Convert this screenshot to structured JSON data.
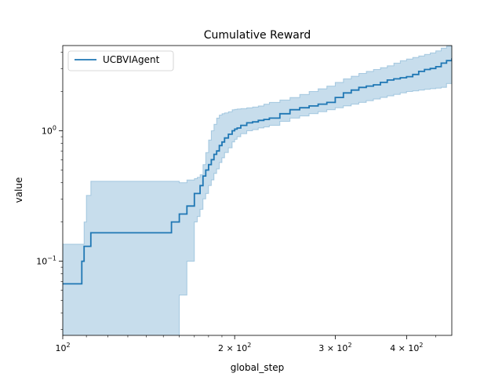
{
  "chart_data": {
    "type": "line",
    "title": "Cumulative Reward",
    "xlabel": "global_step",
    "ylabel": "value",
    "xscale": "log",
    "yscale": "log",
    "xlim": [
      100,
      480
    ],
    "ylim": [
      0.027,
      4.5
    ],
    "grid": false,
    "legend": {
      "placement": "top-left"
    },
    "x_ticks": [
      {
        "value": 100,
        "base": "10",
        "exp": "2"
      },
      {
        "value": 200,
        "base": "2 × 10",
        "exp": "2"
      },
      {
        "value": 300,
        "base": "3 × 10",
        "exp": "2"
      },
      {
        "value": 400,
        "base": "4 × 10",
        "exp": "2"
      }
    ],
    "y_ticks": [
      {
        "value": 0.1,
        "base": "10",
        "exp": "−1"
      },
      {
        "value": 1,
        "base": "10",
        "exp": "0"
      }
    ],
    "series": [
      {
        "name": "UCBVIAgent",
        "color": "#1f77b4",
        "band_color": "#1f77b4",
        "x": [
          100,
          107,
          108,
          109,
          110,
          112,
          135,
          154,
          155,
          156,
          160,
          163,
          165,
          170,
          172,
          174,
          176,
          178,
          180,
          182,
          184,
          186,
          188,
          190,
          192,
          195,
          198,
          200,
          202,
          205,
          210,
          215,
          220,
          225,
          230,
          240,
          250,
          260,
          270,
          280,
          290,
          300,
          310,
          320,
          330,
          340,
          350,
          360,
          370,
          380,
          390,
          400,
          410,
          420,
          430,
          440,
          450,
          460,
          470,
          480
        ],
        "y": [
          0.067,
          0.067,
          0.1,
          0.13,
          0.13,
          0.165,
          0.165,
          0.165,
          0.2,
          0.2,
          0.23,
          0.23,
          0.265,
          0.33,
          0.33,
          0.38,
          0.45,
          0.5,
          0.55,
          0.6,
          0.66,
          0.7,
          0.77,
          0.82,
          0.88,
          0.94,
          1.0,
          1.03,
          1.05,
          1.1,
          1.15,
          1.17,
          1.2,
          1.22,
          1.25,
          1.35,
          1.45,
          1.5,
          1.55,
          1.6,
          1.65,
          1.8,
          1.95,
          2.05,
          2.15,
          2.2,
          2.25,
          2.35,
          2.45,
          2.5,
          2.55,
          2.6,
          2.7,
          2.85,
          2.95,
          3.0,
          3.1,
          3.3,
          3.45,
          3.6
        ],
        "lower": [
          0.01,
          0.01,
          0.01,
          0.01,
          0.01,
          0.01,
          0.01,
          0.01,
          0.01,
          0.02,
          0.055,
          0.055,
          0.1,
          0.2,
          0.22,
          0.25,
          0.3,
          0.33,
          0.38,
          0.42,
          0.47,
          0.51,
          0.57,
          0.62,
          0.68,
          0.74,
          0.82,
          0.86,
          0.9,
          0.95,
          1.0,
          1.02,
          1.05,
          1.07,
          1.1,
          1.18,
          1.25,
          1.3,
          1.35,
          1.4,
          1.45,
          1.5,
          1.55,
          1.6,
          1.65,
          1.7,
          1.75,
          1.8,
          1.85,
          1.9,
          1.95,
          2.0,
          2.02,
          2.05,
          2.08,
          2.1,
          2.12,
          2.15,
          2.3,
          2.6
        ],
        "upper": [
          0.135,
          0.135,
          0.135,
          0.2,
          0.32,
          0.41,
          0.41,
          0.41,
          0.41,
          0.41,
          0.4,
          0.4,
          0.42,
          0.43,
          0.44,
          0.46,
          0.55,
          0.68,
          0.85,
          1.0,
          1.12,
          1.25,
          1.32,
          1.35,
          1.37,
          1.4,
          1.45,
          1.46,
          1.47,
          1.48,
          1.5,
          1.52,
          1.55,
          1.6,
          1.65,
          1.72,
          1.8,
          1.9,
          2.0,
          2.1,
          2.2,
          2.35,
          2.5,
          2.62,
          2.75,
          2.85,
          2.95,
          3.05,
          3.15,
          3.3,
          3.45,
          3.55,
          3.65,
          3.75,
          3.85,
          3.95,
          4.1,
          4.3,
          4.45,
          4.5
        ]
      }
    ]
  }
}
